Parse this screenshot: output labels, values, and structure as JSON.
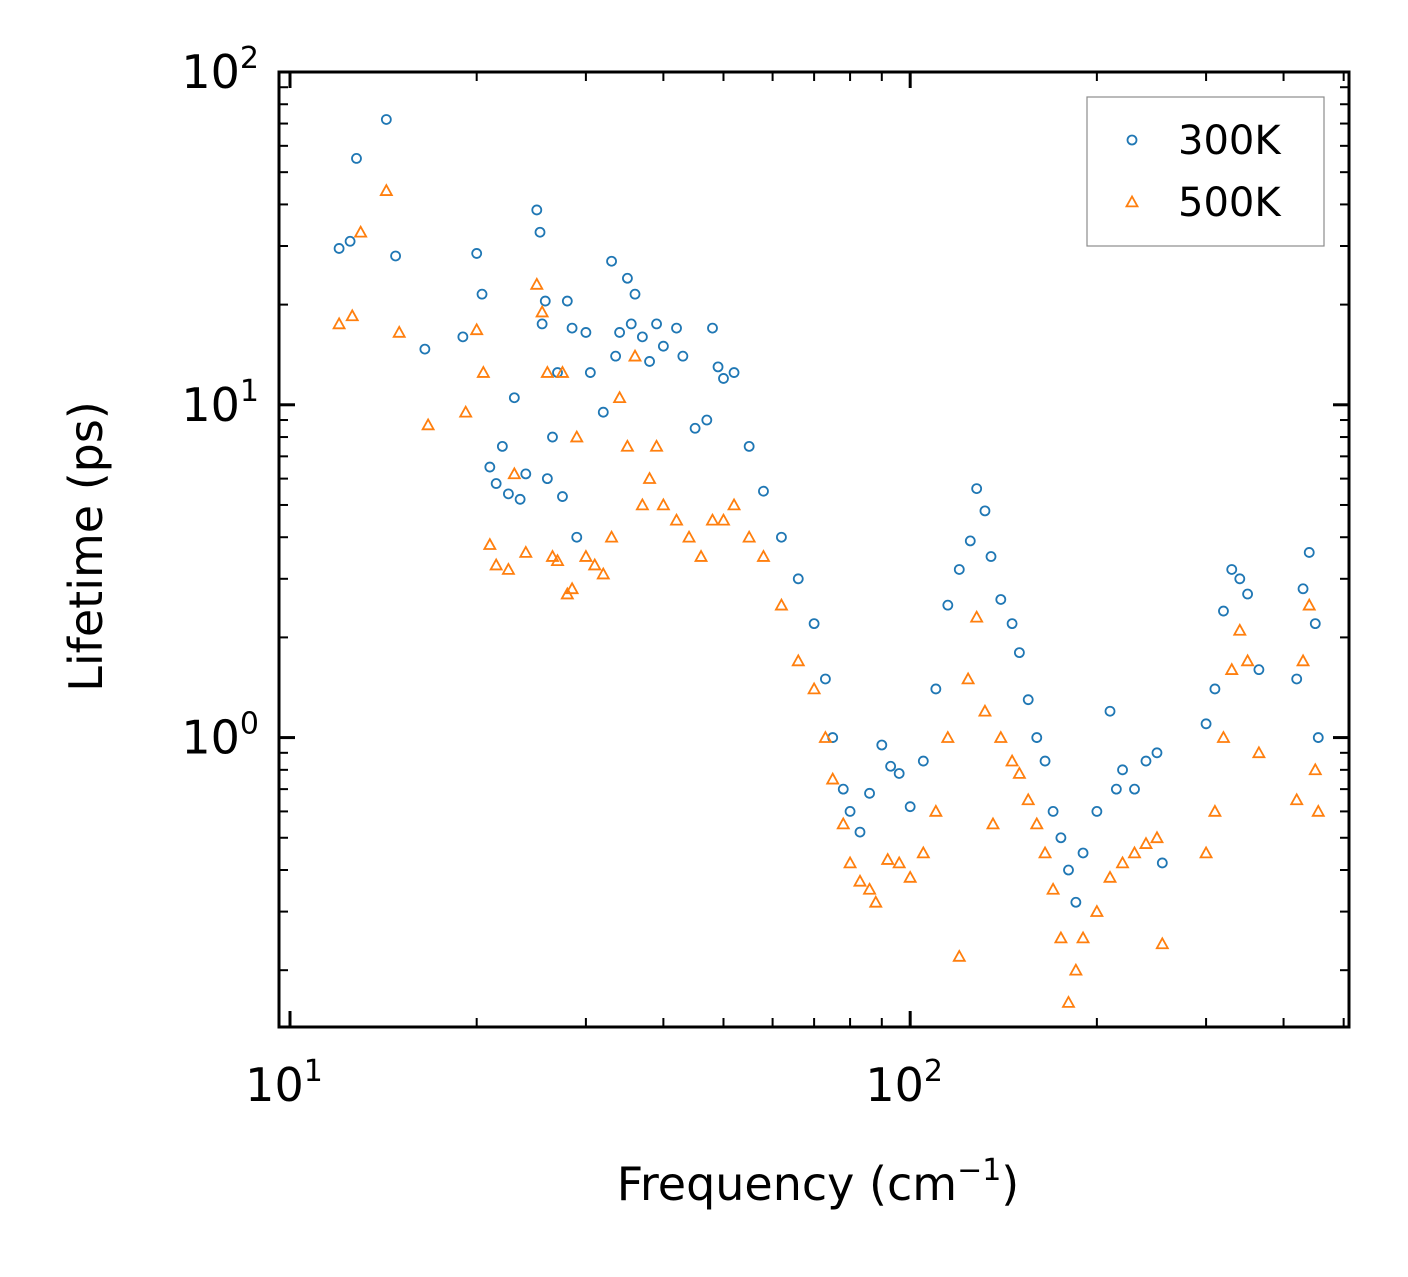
{
  "chart_data": {
    "type": "scatter",
    "title": "",
    "xlabel": "Frequency (cm",
    "xlabel_sup": "−1",
    "xlabel_suffix": ")",
    "ylabel": "Lifetime (ps)",
    "xscale": "log",
    "yscale": "log",
    "xlim": [
      9.6,
      510
    ],
    "ylim": [
      0.135,
      100
    ],
    "x_ticks": [
      {
        "value": 10,
        "base": "10",
        "exp": "1"
      },
      {
        "value": 100,
        "base": "10",
        "exp": "2"
      }
    ],
    "y_ticks": [
      {
        "value": 1,
        "base": "10",
        "exp": "0"
      },
      {
        "value": 10,
        "base": "10",
        "exp": "1"
      },
      {
        "value": 100,
        "base": "10",
        "exp": "2"
      }
    ],
    "legend_position": "top-right",
    "series": [
      {
        "name": "300K",
        "marker": "circle",
        "color": "#1f77b4",
        "points": [
          [
            12.0,
            29.5
          ],
          [
            12.5,
            31.0
          ],
          [
            12.8,
            55.0
          ],
          [
            14.3,
            72.0
          ],
          [
            14.8,
            28.0
          ],
          [
            16.5,
            14.7
          ],
          [
            19.0,
            16.0
          ],
          [
            20.0,
            28.5
          ],
          [
            20.4,
            21.5
          ],
          [
            21.0,
            6.5
          ],
          [
            21.5,
            5.8
          ],
          [
            22.0,
            7.5
          ],
          [
            22.5,
            5.4
          ],
          [
            23.0,
            10.5
          ],
          [
            23.5,
            5.2
          ],
          [
            24.0,
            6.2
          ],
          [
            25.0,
            38.5
          ],
          [
            25.3,
            33.0
          ],
          [
            25.8,
            20.5
          ],
          [
            25.5,
            17.5
          ],
          [
            26.0,
            6.0
          ],
          [
            26.5,
            8.0
          ],
          [
            27.0,
            12.5
          ],
          [
            27.5,
            5.3
          ],
          [
            28.0,
            20.5
          ],
          [
            28.5,
            17.0
          ],
          [
            29.0,
            4.0
          ],
          [
            30.0,
            16.5
          ],
          [
            30.5,
            12.5
          ],
          [
            32.0,
            9.5
          ],
          [
            33.0,
            27.0
          ],
          [
            33.5,
            14.0
          ],
          [
            34.0,
            16.5
          ],
          [
            35.0,
            24.0
          ],
          [
            35.5,
            17.5
          ],
          [
            36.0,
            21.5
          ],
          [
            37.0,
            16.0
          ],
          [
            38.0,
            13.5
          ],
          [
            39.0,
            17.5
          ],
          [
            40.0,
            15.0
          ],
          [
            42.0,
            17.0
          ],
          [
            43.0,
            14.0
          ],
          [
            45.0,
            8.5
          ],
          [
            47.0,
            9.0
          ],
          [
            48.0,
            17.0
          ],
          [
            49.0,
            13.0
          ],
          [
            50.0,
            12.0
          ],
          [
            52.0,
            12.5
          ],
          [
            55.0,
            7.5
          ],
          [
            58.0,
            5.5
          ],
          [
            62.0,
            4.0
          ],
          [
            66.0,
            3.0
          ],
          [
            70.0,
            2.2
          ],
          [
            73.0,
            1.5
          ],
          [
            75.0,
            1.0
          ],
          [
            78.0,
            0.7
          ],
          [
            80.0,
            0.6
          ],
          [
            83.0,
            0.52
          ],
          [
            86.0,
            0.68
          ],
          [
            90.0,
            0.95
          ],
          [
            93.0,
            0.82
          ],
          [
            96.0,
            0.78
          ],
          [
            100.0,
            0.62
          ],
          [
            105.0,
            0.85
          ],
          [
            110.0,
            1.4
          ],
          [
            115.0,
            2.5
          ],
          [
            120.0,
            3.2
          ],
          [
            125.0,
            3.9
          ],
          [
            128.0,
            5.6
          ],
          [
            132.0,
            4.8
          ],
          [
            135.0,
            3.5
          ],
          [
            140.0,
            2.6
          ],
          [
            146.0,
            2.2
          ],
          [
            150.0,
            1.8
          ],
          [
            155.0,
            1.3
          ],
          [
            160.0,
            1.0
          ],
          [
            165.0,
            0.85
          ],
          [
            170.0,
            0.6
          ],
          [
            175.0,
            0.5
          ],
          [
            180.0,
            0.4
          ],
          [
            185.0,
            0.32
          ],
          [
            190.0,
            0.45
          ],
          [
            200.0,
            0.6
          ],
          [
            210.0,
            1.2
          ],
          [
            215.0,
            0.7
          ],
          [
            220.0,
            0.8
          ],
          [
            230.0,
            0.7
          ],
          [
            240.0,
            0.85
          ],
          [
            250.0,
            0.9
          ],
          [
            255.0,
            0.42
          ],
          [
            300.0,
            1.1
          ],
          [
            310.0,
            1.4
          ],
          [
            320.0,
            2.4
          ],
          [
            330.0,
            3.2
          ],
          [
            340.0,
            3.0
          ],
          [
            350.0,
            2.7
          ],
          [
            365.0,
            1.6
          ],
          [
            420.0,
            1.5
          ],
          [
            430.0,
            2.8
          ],
          [
            440.0,
            3.6
          ],
          [
            450.0,
            2.2
          ],
          [
            455.0,
            1.0
          ]
        ]
      },
      {
        "name": "500K",
        "marker": "triangle",
        "color": "#ff7f0e",
        "points": [
          [
            12.0,
            17.5
          ],
          [
            12.6,
            18.5
          ],
          [
            13.0,
            33.0
          ],
          [
            14.3,
            44.0
          ],
          [
            15.0,
            16.5
          ],
          [
            16.7,
            8.7
          ],
          [
            19.2,
            9.5
          ],
          [
            20.0,
            16.8
          ],
          [
            20.5,
            12.5
          ],
          [
            21.0,
            3.8
          ],
          [
            21.5,
            3.3
          ],
          [
            22.5,
            3.2
          ],
          [
            23.0,
            6.2
          ],
          [
            24.0,
            3.6
          ],
          [
            25.0,
            23.0
          ],
          [
            25.5,
            19.0
          ],
          [
            26.0,
            12.5
          ],
          [
            26.5,
            3.5
          ],
          [
            27.0,
            3.4
          ],
          [
            27.5,
            12.5
          ],
          [
            28.0,
            2.7
          ],
          [
            28.5,
            2.8
          ],
          [
            29.0,
            8.0
          ],
          [
            30.0,
            3.5
          ],
          [
            31.0,
            3.3
          ],
          [
            32.0,
            3.1
          ],
          [
            33.0,
            4.0
          ],
          [
            34.0,
            10.5
          ],
          [
            35.0,
            7.5
          ],
          [
            36.0,
            14.0
          ],
          [
            37.0,
            5.0
          ],
          [
            38.0,
            6.0
          ],
          [
            39.0,
            7.5
          ],
          [
            40.0,
            5.0
          ],
          [
            42.0,
            4.5
          ],
          [
            44.0,
            4.0
          ],
          [
            46.0,
            3.5
          ],
          [
            48.0,
            4.5
          ],
          [
            50.0,
            4.5
          ],
          [
            52.0,
            5.0
          ],
          [
            55.0,
            4.0
          ],
          [
            58.0,
            3.5
          ],
          [
            62.0,
            2.5
          ],
          [
            66.0,
            1.7
          ],
          [
            70.0,
            1.4
          ],
          [
            73.0,
            1.0
          ],
          [
            75.0,
            0.75
          ],
          [
            78.0,
            0.55
          ],
          [
            80.0,
            0.42
          ],
          [
            83.0,
            0.37
          ],
          [
            86.0,
            0.35
          ],
          [
            88.0,
            0.32
          ],
          [
            92.0,
            0.43
          ],
          [
            96.0,
            0.42
          ],
          [
            100.0,
            0.38
          ],
          [
            105.0,
            0.45
          ],
          [
            110.0,
            0.6
          ],
          [
            115.0,
            1.0
          ],
          [
            120.0,
            0.22
          ],
          [
            124.0,
            1.5
          ],
          [
            128.0,
            2.3
          ],
          [
            132.0,
            1.2
          ],
          [
            136.0,
            0.55
          ],
          [
            140.0,
            1.0
          ],
          [
            146.0,
            0.85
          ],
          [
            150.0,
            0.78
          ],
          [
            155.0,
            0.65
          ],
          [
            160.0,
            0.55
          ],
          [
            165.0,
            0.45
          ],
          [
            170.0,
            0.35
          ],
          [
            175.0,
            0.25
          ],
          [
            180.0,
            0.16
          ],
          [
            185.0,
            0.2
          ],
          [
            190.0,
            0.25
          ],
          [
            200.0,
            0.3
          ],
          [
            210.0,
            0.38
          ],
          [
            220.0,
            0.42
          ],
          [
            230.0,
            0.45
          ],
          [
            240.0,
            0.48
          ],
          [
            250.0,
            0.5
          ],
          [
            255.0,
            0.24
          ],
          [
            300.0,
            0.45
          ],
          [
            310.0,
            0.6
          ],
          [
            320.0,
            1.0
          ],
          [
            330.0,
            1.6
          ],
          [
            340.0,
            2.1
          ],
          [
            350.0,
            1.7
          ],
          [
            365.0,
            0.9
          ],
          [
            420.0,
            0.65
          ],
          [
            430.0,
            1.7
          ],
          [
            440.0,
            2.5
          ],
          [
            450.0,
            0.8
          ],
          [
            455.0,
            0.6
          ]
        ]
      }
    ]
  }
}
